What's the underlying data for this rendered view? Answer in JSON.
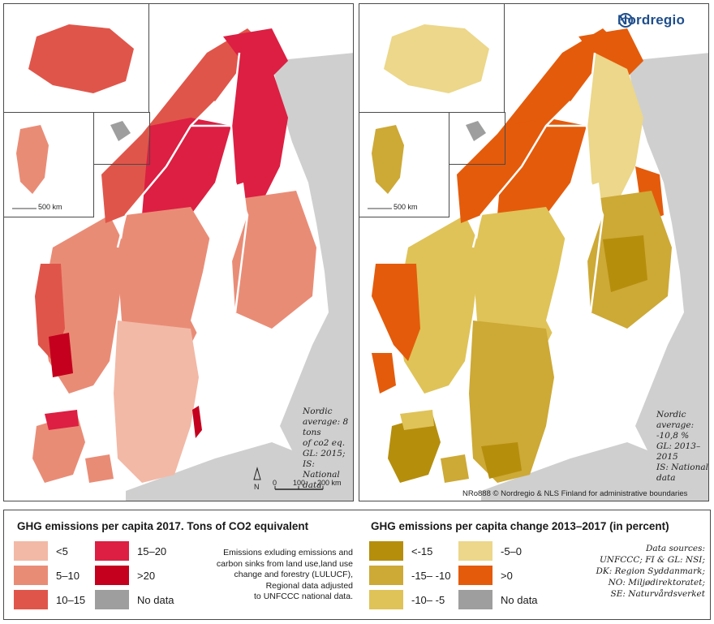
{
  "left_map": {
    "note": [
      "Nordic",
      "average: 8 tons",
      "of co2 eq.",
      "GL: 2015;",
      "IS: National data"
    ],
    "scale": {
      "labels": [
        "0",
        "100",
        "200 km"
      ]
    },
    "north": "N",
    "inset_scale": "500 km"
  },
  "right_map": {
    "note": [
      "Nordic",
      "average: -10,8 %",
      "GL: 2013–2015",
      "IS: National data"
    ],
    "inset_scale": "500 km",
    "credits": "NRo888  © Nordregio & NLS Finland for administrative boundaries",
    "logo": "Nordregio"
  },
  "legend_left": {
    "title": "GHG emissions per capita 2017. Tons of CO2 equivalent",
    "items": [
      {
        "label": "<5",
        "color": "#f2b9a6"
      },
      {
        "label": "5–10",
        "color": "#e98c76"
      },
      {
        "label": "10–15",
        "color": "#e0554a"
      },
      {
        "label": "15–20",
        "color": "#dc1f42"
      },
      {
        "label": ">20",
        "color": "#c4001e"
      },
      {
        "label": "No data",
        "color": "#9e9e9e"
      }
    ],
    "description": [
      "Emissions exluding emissions and",
      "carbon sinks from land use,land use",
      "change and forestry (LULUCF),",
      "Regional data adjusted",
      "to UNFCCC national data."
    ]
  },
  "legend_right": {
    "title": "GHG emissions per capita change 2013–2017 (in percent)",
    "items": [
      {
        "label": "<-15",
        "color": "#b58e0c"
      },
      {
        "label": "-15– -10",
        "color": "#cda936"
      },
      {
        "label": "-10– -5",
        "color": "#dfc358"
      },
      {
        "label": "-5–0",
        "color": "#ecd78a"
      },
      {
        "label": ">0",
        "color": "#e45b0b"
      },
      {
        "label": "No data",
        "color": "#9e9e9e"
      }
    ],
    "sources": [
      "Data sources:",
      "UNFCCC; FI & GL: NSI;",
      "DK: Region Syddanmark;",
      "NO: Miljødirektoratet;",
      "SE: Naturvårdsverket"
    ]
  },
  "colors": {
    "sea": "#ffffff",
    "land_nodata": "#cfcfcf",
    "border": "#ffffff"
  }
}
